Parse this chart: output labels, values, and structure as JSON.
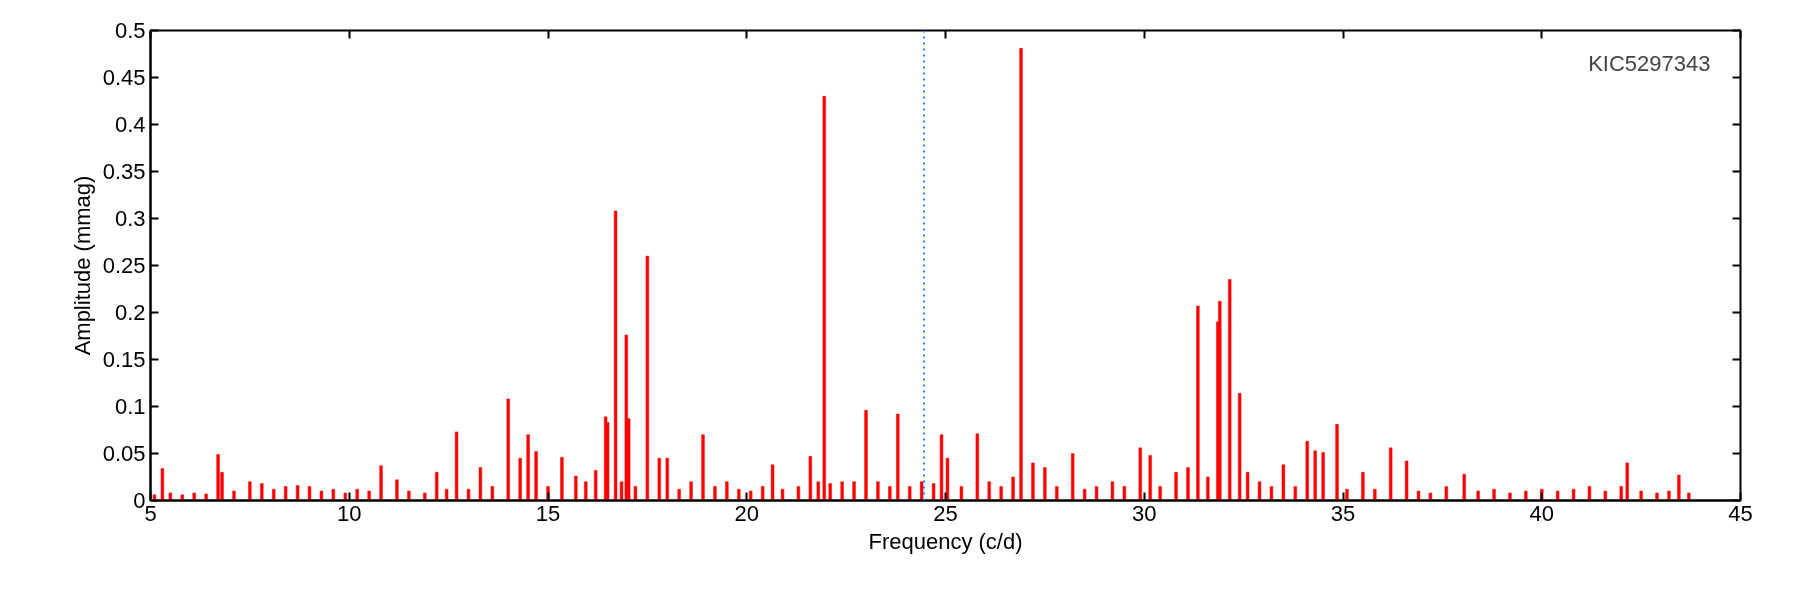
{
  "chart_data": {
    "type": "bar",
    "xlabel": "Frequency (c/d)",
    "ylabel": "Amplitude (mmag)",
    "annotations": [
      "KIC5297343"
    ],
    "x": [
      5.1,
      5.3,
      5.5,
      5.8,
      6.1,
      6.4,
      6.7,
      6.8,
      7.1,
      7.5,
      7.8,
      8.1,
      8.4,
      8.7,
      9.0,
      9.3,
      9.6,
      9.9,
      10.2,
      10.5,
      10.8,
      11.2,
      11.5,
      11.9,
      12.2,
      12.45,
      12.7,
      13.0,
      13.3,
      13.6,
      14.0,
      14.3,
      14.5,
      14.7,
      15.0,
      15.35,
      15.7,
      15.95,
      16.2,
      16.45,
      16.5,
      16.7,
      16.85,
      16.97,
      17.03,
      17.2,
      17.5,
      17.8,
      18.0,
      18.3,
      18.6,
      18.9,
      19.2,
      19.5,
      19.8,
      20.1,
      20.4,
      20.65,
      20.9,
      21.3,
      21.6,
      21.8,
      21.95,
      22.1,
      22.4,
      22.7,
      23.0,
      23.3,
      23.6,
      23.8,
      24.1,
      24.4,
      24.7,
      24.9,
      25.05,
      25.4,
      25.8,
      26.1,
      26.4,
      26.7,
      26.9,
      27.2,
      27.5,
      27.8,
      28.2,
      28.5,
      28.8,
      29.2,
      29.5,
      29.9,
      30.15,
      30.4,
      30.8,
      31.1,
      31.35,
      31.6,
      31.85,
      31.9,
      32.15,
      32.4,
      32.6,
      32.9,
      33.2,
      33.5,
      33.8,
      34.1,
      34.3,
      34.5,
      34.85,
      35.1,
      35.5,
      35.8,
      36.2,
      36.6,
      36.9,
      37.2,
      37.6,
      38.05,
      38.4,
      38.8,
      39.2,
      39.6,
      40.0,
      40.4,
      40.8,
      41.2,
      41.6,
      42.0,
      42.15,
      42.5,
      42.9,
      43.2,
      43.45,
      43.7
    ],
    "series": [
      {
        "color": "#ff0000",
        "values": [
          0.006,
          0.034,
          0.008,
          0.006,
          0.008,
          0.007,
          0.049,
          0.03,
          0.01,
          0.02,
          0.018,
          0.012,
          0.015,
          0.016,
          0.015,
          0.01,
          0.012,
          0.008,
          0.012,
          0.01,
          0.037,
          0.022,
          0.01,
          0.008,
          0.03,
          0.012,
          0.073,
          0.012,
          0.035,
          0.015,
          0.108,
          0.045,
          0.07,
          0.052,
          0.015,
          0.046,
          0.026,
          0.02,
          0.032,
          0.089,
          0.083,
          0.308,
          0.02,
          0.176,
          0.087,
          0.015,
          0.26,
          0.045,
          0.045,
          0.012,
          0.02,
          0.07,
          0.015,
          0.02,
          0.012,
          0.01,
          0.015,
          0.038,
          0.012,
          0.015,
          0.047,
          0.02,
          0.43,
          0.018,
          0.02,
          0.02,
          0.096,
          0.02,
          0.015,
          0.092,
          0.015,
          0.02,
          0.018,
          0.07,
          0.045,
          0.015,
          0.071,
          0.02,
          0.015,
          0.025,
          0.481,
          0.04,
          0.035,
          0.015,
          0.05,
          0.012,
          0.015,
          0.02,
          0.015,
          0.056,
          0.048,
          0.015,
          0.03,
          0.035,
          0.207,
          0.025,
          0.19,
          0.212,
          0.235,
          0.114,
          0.03,
          0.02,
          0.015,
          0.038,
          0.015,
          0.063,
          0.053,
          0.051,
          0.081,
          0.012,
          0.03,
          0.012,
          0.056,
          0.042,
          0.01,
          0.008,
          0.015,
          0.028,
          0.01,
          0.012,
          0.008,
          0.01,
          0.012,
          0.01,
          0.012,
          0.015,
          0.01,
          0.015,
          0.04,
          0.01,
          0.008,
          0.01,
          0.027,
          0.008
        ]
      }
    ],
    "xlim": [
      5,
      45
    ],
    "xticks": [
      5,
      10,
      15,
      20,
      25,
      30,
      35,
      40,
      45
    ],
    "ylim": [
      0,
      0.5
    ],
    "yticks": [
      0,
      0.05,
      0.1,
      0.15,
      0.2,
      0.25,
      0.3,
      0.35,
      0.4,
      0.45,
      0.5
    ],
    "ref_lines": [
      {
        "axis": "x",
        "value": 24.46,
        "color": "#1e88ff",
        "line_style": "dotted"
      }
    ],
    "grid": false
  }
}
